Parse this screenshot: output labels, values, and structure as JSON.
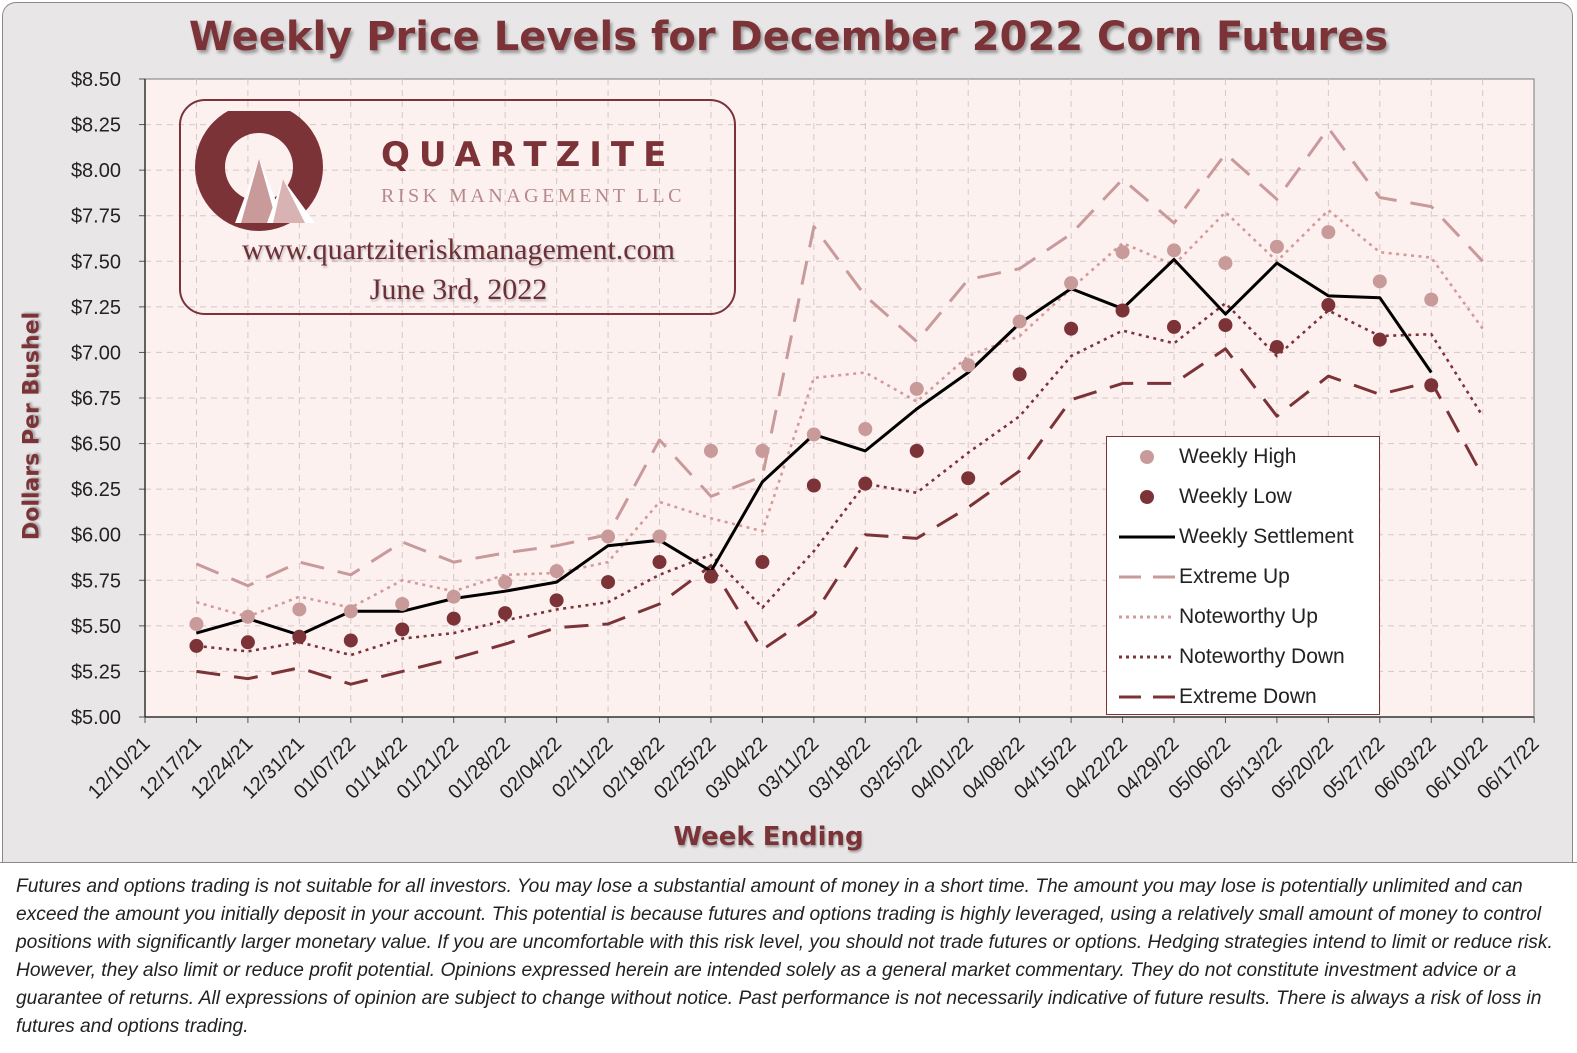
{
  "chart_data": {
    "type": "line",
    "title": "Weekly Price Levels for December 2022 Corn Futures",
    "xlabel": "Week Ending",
    "ylabel": "Dollars Per Bushel",
    "ylim": [
      5.0,
      8.5
    ],
    "grid": true,
    "legend_position": "bottom-right",
    "y_ticks": [
      "$5.00",
      "$5.25",
      "$5.50",
      "$5.75",
      "$6.00",
      "$6.25",
      "$6.50",
      "$6.75",
      "$7.00",
      "$7.25",
      "$7.50",
      "$7.75",
      "$8.00",
      "$8.25",
      "$8.50"
    ],
    "categories": [
      "12/10/21",
      "12/17/21",
      "12/24/21",
      "12/31/21",
      "01/07/22",
      "01/14/22",
      "01/21/22",
      "01/28/22",
      "02/04/22",
      "02/11/22",
      "02/18/22",
      "02/25/22",
      "03/04/22",
      "03/11/22",
      "03/18/22",
      "03/25/22",
      "04/01/22",
      "04/08/22",
      "04/15/22",
      "04/22/22",
      "04/29/22",
      "05/06/22",
      "05/13/22",
      "05/20/22",
      "05/27/22",
      "06/03/22",
      "06/10/22",
      "06/17/22"
    ],
    "series": [
      {
        "name": "Weekly High",
        "style": "markers",
        "color": "#c99a9a",
        "values": [
          null,
          5.51,
          5.55,
          5.59,
          5.58,
          5.62,
          5.66,
          5.74,
          5.8,
          5.99,
          5.99,
          6.46,
          6.46,
          6.55,
          6.58,
          6.8,
          6.93,
          7.17,
          7.38,
          7.55,
          7.56,
          7.49,
          7.58,
          7.66,
          7.39,
          7.29,
          null,
          null
        ]
      },
      {
        "name": "Weekly Low",
        "style": "markers",
        "color": "#7b3338",
        "values": [
          null,
          5.39,
          5.41,
          5.44,
          5.42,
          5.48,
          5.54,
          5.57,
          5.64,
          5.74,
          5.85,
          5.77,
          5.85,
          6.27,
          6.28,
          6.46,
          6.31,
          6.88,
          7.13,
          7.23,
          7.14,
          7.15,
          7.03,
          7.26,
          7.07,
          6.82,
          null,
          null
        ]
      },
      {
        "name": "Weekly Settlement",
        "style": "solid",
        "color": "#000000",
        "values": [
          null,
          5.46,
          5.54,
          5.45,
          5.58,
          5.58,
          5.65,
          5.69,
          5.74,
          5.94,
          5.97,
          5.8,
          6.29,
          6.55,
          6.46,
          6.69,
          6.89,
          7.16,
          7.35,
          7.24,
          7.51,
          7.21,
          7.49,
          7.31,
          7.3,
          6.89,
          null,
          null
        ]
      },
      {
        "name": "Extreme Up",
        "style": "long-dash",
        "color": "#c99a9a",
        "values": [
          null,
          5.84,
          5.72,
          5.85,
          5.78,
          5.96,
          5.85,
          5.9,
          5.94,
          6.0,
          6.52,
          6.21,
          6.32,
          7.69,
          7.31,
          7.06,
          7.4,
          7.46,
          7.65,
          7.95,
          7.71,
          8.09,
          7.84,
          8.23,
          7.85,
          7.8,
          7.5,
          null
        ]
      },
      {
        "name": "Noteworthy Up",
        "style": "dotted",
        "color": "#d49a9a",
        "values": [
          null,
          5.63,
          5.55,
          5.66,
          5.6,
          5.75,
          5.69,
          5.78,
          5.79,
          5.85,
          6.18,
          6.09,
          6.02,
          6.86,
          6.89,
          6.73,
          6.98,
          7.09,
          7.35,
          7.6,
          7.48,
          7.77,
          7.5,
          7.78,
          7.55,
          7.52,
          7.13,
          null
        ]
      },
      {
        "name": "Noteworthy Down",
        "style": "dotted",
        "color": "#7b3338",
        "values": [
          null,
          5.39,
          5.36,
          5.41,
          5.34,
          5.43,
          5.46,
          5.53,
          5.59,
          5.63,
          5.78,
          5.89,
          5.6,
          5.91,
          6.28,
          6.23,
          6.45,
          6.65,
          6.98,
          7.12,
          7.05,
          7.27,
          6.98,
          7.23,
          7.09,
          7.1,
          6.65,
          null
        ]
      },
      {
        "name": "Extreme Down",
        "style": "long-dash",
        "color": "#7b3338",
        "values": [
          null,
          5.25,
          5.21,
          5.27,
          5.18,
          5.25,
          5.32,
          5.4,
          5.49,
          5.51,
          5.62,
          5.83,
          5.37,
          5.56,
          6.0,
          5.98,
          6.15,
          6.35,
          6.74,
          6.83,
          6.83,
          7.02,
          6.65,
          6.87,
          6.77,
          6.84,
          6.32,
          null
        ]
      }
    ]
  },
  "logo": {
    "name": "QUARTZITE",
    "subtitle": "RISK MANAGEMENT LLC",
    "url": "www.quartziteriskmanagement.com",
    "date": "June 3rd, 2022"
  },
  "legend": {
    "items": [
      "Weekly High",
      "Weekly Low",
      "Weekly Settlement",
      "Extreme Up",
      "Noteworthy Up",
      "Noteworthy Down",
      "Extreme Down"
    ]
  },
  "disclaimer": "Futures and options trading is not suitable for all investors. You may lose a substantial amount of money in a short time. The amount you may lose is potentially unlimited and can exceed the amount you initially deposit in your account. This potential is because futures and options trading is highly leveraged, using a relatively small amount of money to control positions with significantly larger monetary value. If you are uncomfortable with this risk level, you should not trade futures or options. Hedging strategies intend to limit or reduce risk. However, they also limit or reduce profit potential. Opinions expressed herein are intended solely as a general market commentary. They do not constitute investment advice or a guarantee of returns. All expressions of opinion are subject to change without notice. Past performance is not necessarily indicative of future results. There is always a risk of loss in futures and options trading.",
  "colors": {
    "title": "#7b3338",
    "plot_background": "#fdf1f0",
    "grid": "#d9cccc",
    "frame_background": "#e8e6e6"
  }
}
